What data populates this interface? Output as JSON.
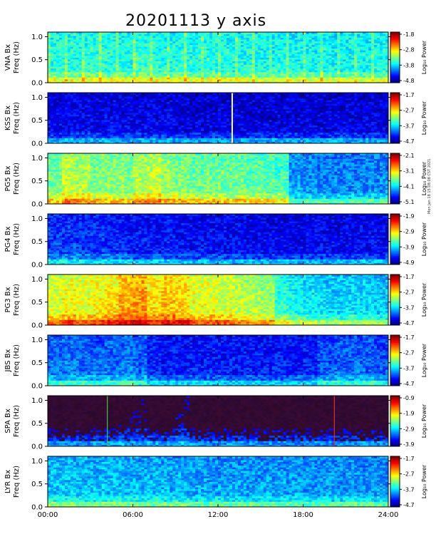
{
  "title": "20201113 y axis",
  "credit": "Mon Jan 18 15:08:08 CST 2021",
  "chart_data": [
    {
      "type": "heatmap",
      "station": "VNA Bx",
      "ylabel": "VNA Bx\nFreq (Hz)",
      "colorbar_label": "Log₁₀ Power",
      "colorbar_ticks": [
        "-1.8",
        "-2.8",
        "-3.8",
        "-4.8"
      ],
      "ylim": [
        0,
        1.1
      ],
      "yticks": [
        "1.0",
        "0.5",
        "0.0"
      ],
      "xlim": [
        "00:00",
        "24:00"
      ],
      "intensity": [
        0.42,
        0.43,
        0.42,
        0.44,
        0.43,
        0.42,
        0.44,
        0.43,
        0.42,
        0.43,
        0.42,
        0.43,
        0.42,
        0.41,
        0.42,
        0.41,
        0.42,
        0.41,
        0.4,
        0.41,
        0.4,
        0.41,
        0.4,
        0.41
      ],
      "vertical_streaks": true
    },
    {
      "type": "heatmap",
      "station": "KSS Bx",
      "ylabel": "KSS Bx\nFreq (Hz)",
      "colorbar_label": "Log₁₀ Power",
      "colorbar_ticks": [
        "-1.7",
        "-2.7",
        "-3.7",
        "-4.7"
      ],
      "ylim": [
        0,
        1.1
      ],
      "yticks": [
        "1.0",
        "0.5",
        "0.0"
      ],
      "xlim": [
        "00:00",
        "24:00"
      ],
      "intensity": [
        0.12,
        0.12,
        0.13,
        0.12,
        0.13,
        0.12,
        0.12,
        0.12,
        0.12,
        0.11,
        0.11,
        0.11,
        0.11,
        0.11,
        0.11,
        0.11,
        0.11,
        0.11,
        0.11,
        0.11,
        0.11,
        0.11,
        0.11,
        0.11
      ],
      "gap_hour": 13.0
    },
    {
      "type": "heatmap",
      "station": "PG5 Bx",
      "ylabel": "PG5 Bx\nFreq (Hz)",
      "colorbar_label": "Log₁₀ Power",
      "colorbar_ticks": [
        "-2.1",
        "-3.1",
        "-4.1",
        "-5.1"
      ],
      "ylim": [
        0,
        1.1
      ],
      "yticks": [
        "1.0",
        "0.5",
        "0.0"
      ],
      "xlim": [
        "00:00",
        "24:00"
      ],
      "intensity": [
        0.5,
        0.58,
        0.56,
        0.52,
        0.52,
        0.52,
        0.56,
        0.58,
        0.54,
        0.52,
        0.5,
        0.5,
        0.5,
        0.5,
        0.48,
        0.48,
        0.46,
        0.3,
        0.28,
        0.28,
        0.27,
        0.27,
        0.28,
        0.28
      ]
    },
    {
      "type": "heatmap",
      "station": "PG4 Bx",
      "ylabel": "PG4 Bx\nFreq (Hz)",
      "colorbar_label": "Log₁₀ Power",
      "colorbar_ticks": [
        "-1.9",
        "-2.9",
        "-3.9",
        "-4.9"
      ],
      "ylim": [
        0,
        1.1
      ],
      "yticks": [
        "1.0",
        "0.5",
        "0.0"
      ],
      "xlim": [
        "00:00",
        "24:00"
      ],
      "intensity": [
        0.2,
        0.2,
        0.19,
        0.19,
        0.18,
        0.17,
        0.16,
        0.15,
        0.16,
        0.15,
        0.14,
        0.14,
        0.14,
        0.14,
        0.13,
        0.13,
        0.13,
        0.13,
        0.13,
        0.13,
        0.13,
        0.13,
        0.14,
        0.13
      ]
    },
    {
      "type": "heatmap",
      "station": "PG3 Bx",
      "ylabel": "PG3 Bx\nFreq (Hz)",
      "colorbar_label": "Log₁₀ Power",
      "colorbar_ticks": [
        "-1.7",
        "-2.7",
        "-3.7",
        "-4.7"
      ],
      "ylim": [
        0,
        1.1
      ],
      "yticks": [
        "1.0",
        "0.5",
        "0.0"
      ],
      "xlim": [
        "00:00",
        "24:00"
      ],
      "intensity": [
        0.6,
        0.64,
        0.62,
        0.64,
        0.66,
        0.72,
        0.74,
        0.66,
        0.7,
        0.68,
        0.62,
        0.62,
        0.6,
        0.58,
        0.56,
        0.54,
        0.44,
        0.4,
        0.38,
        0.36,
        0.36,
        0.36,
        0.36,
        0.34
      ]
    },
    {
      "type": "heatmap",
      "station": "JBS Bx",
      "ylabel": "JBS Bx\nFreq (Hz)",
      "colorbar_label": "Log₁₀ Power",
      "colorbar_ticks": [
        "-1.7",
        "-2.7",
        "-3.7",
        "-4.7"
      ],
      "ylim": [
        0,
        1.1
      ],
      "yticks": [
        "1.0",
        "0.5",
        "0.0"
      ],
      "xlim": [
        "00:00",
        "24:00"
      ],
      "intensity": [
        0.25,
        0.26,
        0.25,
        0.24,
        0.25,
        0.26,
        0.24,
        0.18,
        0.16,
        0.16,
        0.16,
        0.16,
        0.16,
        0.16,
        0.16,
        0.16,
        0.16,
        0.16,
        0.17,
        0.22,
        0.24,
        0.24,
        0.24,
        0.22
      ]
    },
    {
      "type": "heatmap",
      "station": "SPA Bx",
      "ylabel": "SPA Bx\nFreq (Hz)",
      "colorbar_label": "Log₁₀ Power",
      "colorbar_ticks": [
        "-0.9",
        "-1.9",
        "-2.9",
        "-3.9"
      ],
      "ylim": [
        0,
        1.1
      ],
      "yticks": [
        "1.0",
        "0.5",
        "0.0"
      ],
      "xlim": [
        "00:00",
        "24:00"
      ],
      "intensity": [
        0.06,
        0.06,
        0.06,
        0.07,
        0.08,
        0.12,
        0.14,
        0.1,
        0.1,
        0.16,
        0.08,
        0.06,
        0.06,
        0.06,
        0.06,
        0.06,
        0.06,
        0.06,
        0.06,
        0.06,
        0.06,
        0.06,
        0.06,
        0.06
      ],
      "dark_background": true,
      "markers": [
        {
          "hour": 4.2,
          "color": "#30d030"
        },
        {
          "hour": 20.2,
          "color": "#e03020"
        }
      ]
    },
    {
      "type": "heatmap",
      "station": "LYR Bx",
      "ylabel": "LYR Bx\nFreq (Hz)",
      "colorbar_label": "Log₁₀ Power",
      "colorbar_ticks": [
        "-1.7",
        "-2.7",
        "-3.7",
        "-4.7"
      ],
      "ylim": [
        0,
        1.1
      ],
      "yticks": [
        "1.0",
        "0.5",
        "0.0"
      ],
      "xlim": [
        "00:00",
        "24:00"
      ],
      "intensity": [
        0.34,
        0.34,
        0.33,
        0.33,
        0.33,
        0.32,
        0.32,
        0.32,
        0.31,
        0.31,
        0.31,
        0.3,
        0.3,
        0.3,
        0.3,
        0.3,
        0.3,
        0.3,
        0.29,
        0.29,
        0.29,
        0.3,
        0.29,
        0.29
      ]
    }
  ],
  "xticks": [
    "00:00",
    "06:00",
    "12:00",
    "18:00",
    "24:00"
  ]
}
